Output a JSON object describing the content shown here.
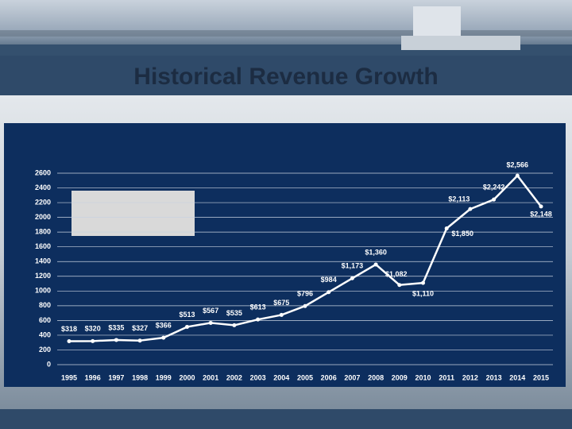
{
  "title": "Historical Revenue Growth",
  "chart_data": {
    "type": "line",
    "categories": [
      "1995",
      "1996",
      "1997",
      "1998",
      "1999",
      "2000",
      "2001",
      "2002",
      "2003",
      "2004",
      "2005",
      "2006",
      "2007",
      "2008",
      "2009",
      "2010",
      "2011",
      "2012",
      "2013",
      "2014",
      "2015"
    ],
    "series": [
      {
        "color": "#ffffff",
        "values": [
          318,
          320,
          335,
          327,
          366,
          513,
          567,
          535,
          613,
          675,
          796,
          984,
          1173,
          1360,
          1082,
          1110,
          1850,
          2113,
          2242,
          2566,
          2148
        ],
        "value_labels": [
          "$318",
          "$320",
          "$335",
          "$327",
          "$366",
          "$513",
          "$567",
          "$535",
          "$613",
          "$675",
          "$796",
          "$984",
          "$1,173",
          "$1,360",
          "$1,082",
          "$1,110",
          "$1,850",
          "$2,113",
          "$2,242",
          "$2,566",
          "$2,148"
        ]
      }
    ],
    "ylim": [
      0,
      2600
    ],
    "yticks": [
      0,
      200,
      400,
      600,
      800,
      1000,
      1200,
      1400,
      1600,
      1800,
      2000,
      2200,
      2400,
      2600
    ],
    "grid": true
  }
}
